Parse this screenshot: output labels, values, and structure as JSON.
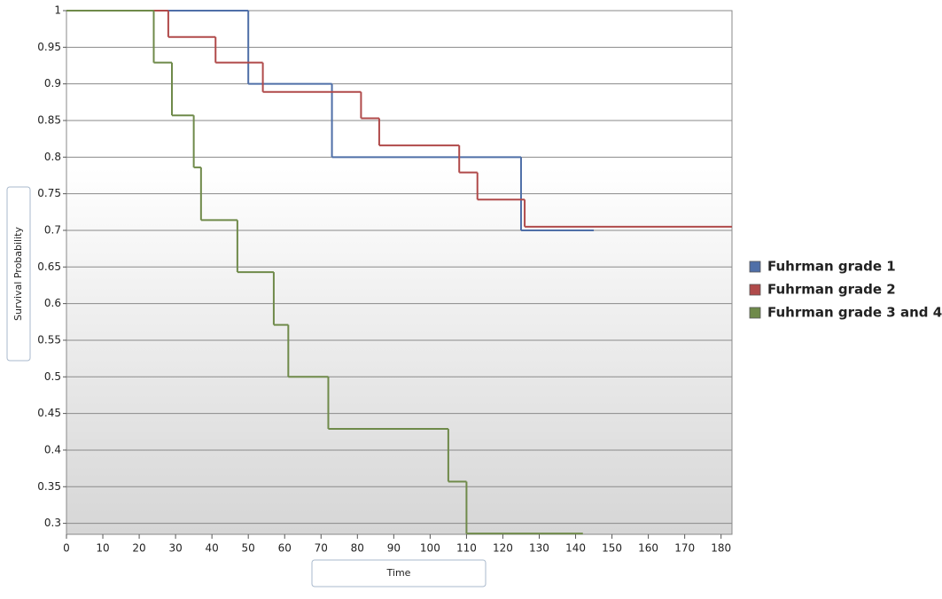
{
  "chart_data": {
    "type": "step",
    "x_label": "Time",
    "y_label": "Survival Probability",
    "xlim": [
      0,
      183
    ],
    "ylim": [
      0.285,
      1
    ],
    "xticks": [
      0,
      10,
      20,
      30,
      40,
      50,
      60,
      70,
      80,
      90,
      100,
      110,
      120,
      130,
      140,
      150,
      160,
      170,
      180
    ],
    "yticks": [
      0.3,
      0.35,
      0.4,
      0.45,
      0.5,
      0.55,
      0.6,
      0.65,
      0.7,
      0.75,
      0.8,
      0.85,
      0.9,
      0.95,
      1
    ],
    "grid": true,
    "legend": "right",
    "series": [
      {
        "name": "Fuhrman grade 1",
        "color": "#4f6fa8",
        "x": [
          0,
          50,
          73,
          125,
          145
        ],
        "values": [
          1,
          0.9,
          0.8,
          0.7,
          0.7
        ]
      },
      {
        "name": "Fuhrman grade 2",
        "color": "#b04a4a",
        "x": [
          0,
          28,
          41,
          54,
          81,
          86,
          108,
          113,
          126,
          183
        ],
        "values": [
          1,
          0.964,
          0.929,
          0.889,
          0.853,
          0.816,
          0.779,
          0.742,
          0.705,
          0.705
        ]
      },
      {
        "name": "Fuhrman grade 3 and 4",
        "color": "#6f8a4a",
        "x": [
          0,
          24,
          29,
          35,
          37,
          47,
          57,
          61,
          72,
          105,
          110,
          142
        ],
        "values": [
          1,
          0.929,
          0.857,
          0.786,
          0.714,
          0.643,
          0.571,
          0.5,
          0.429,
          0.357,
          0.286,
          0.286
        ]
      }
    ]
  }
}
